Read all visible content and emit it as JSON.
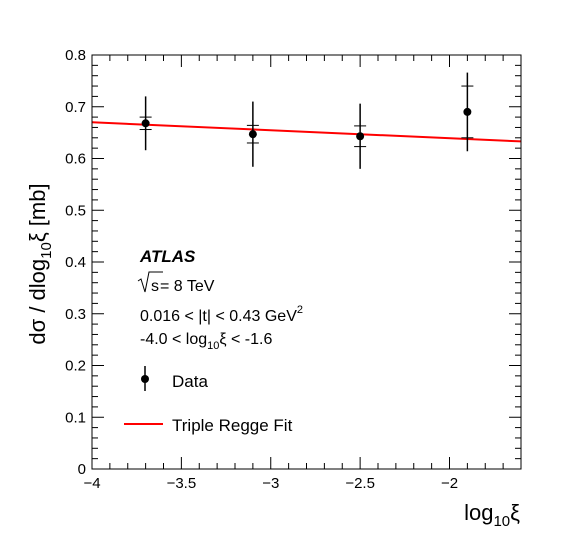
{
  "chart_data": {
    "type": "scatter",
    "xlabel": "log",
    "xlabel_sub": "10",
    "xlabel_tail": "ξ",
    "ylabel": "dσ / dlog",
    "ylabel_sub": "10",
    "ylabel_tail": "ξ  [mb]",
    "xlim": [
      -4.0,
      -1.6
    ],
    "ylim": [
      0.0,
      0.8
    ],
    "x_ticks": [
      -4,
      -3.5,
      -3,
      -2.5,
      -2
    ],
    "x_tick_labels": [
      "−4",
      "−3.5",
      "−3",
      "−2.5",
      "−2"
    ],
    "y_ticks": [
      0,
      0.1,
      0.2,
      0.3,
      0.4,
      0.5,
      0.6,
      0.7,
      0.8
    ],
    "y_tick_labels": [
      "0",
      "0.1",
      "0.2",
      "0.3",
      "0.4",
      "0.5",
      "0.6",
      "0.7",
      "0.8"
    ],
    "grid": false,
    "series": [
      {
        "name": "Data",
        "type": "points",
        "color": "#000000",
        "points": [
          {
            "x": -3.7,
            "y": 0.668,
            "stat_err": 0.012,
            "err_total": 0.052
          },
          {
            "x": -3.1,
            "y": 0.647,
            "stat_err": 0.017,
            "err_total": 0.063
          },
          {
            "x": -2.5,
            "y": 0.643,
            "stat_err": 0.02,
            "err_total": 0.063
          },
          {
            "x": -1.9,
            "y": 0.69,
            "stat_err": 0.05,
            "err_total": 0.076
          }
        ]
      },
      {
        "name": "Triple Regge Fit",
        "type": "line",
        "color": "#ff0000",
        "points": [
          {
            "x": -4.0,
            "y": 0.67
          },
          {
            "x": -1.6,
            "y": 0.633
          }
        ]
      }
    ],
    "annotations": {
      "experiment": "ATLAS",
      "energy_sqrt": "s",
      "energy_rest": "= 8 TeV",
      "t_range_main": "0.016 < |t| < 0.43 GeV",
      "t_range_sup": "2",
      "xi_range_pre": "-4.0 < log",
      "xi_range_sub": "10",
      "xi_range_post": "ξ < -1.6"
    },
    "legend": {
      "placement": "bottom-left",
      "entries": [
        "Data",
        "Triple Regge Fit"
      ]
    }
  }
}
